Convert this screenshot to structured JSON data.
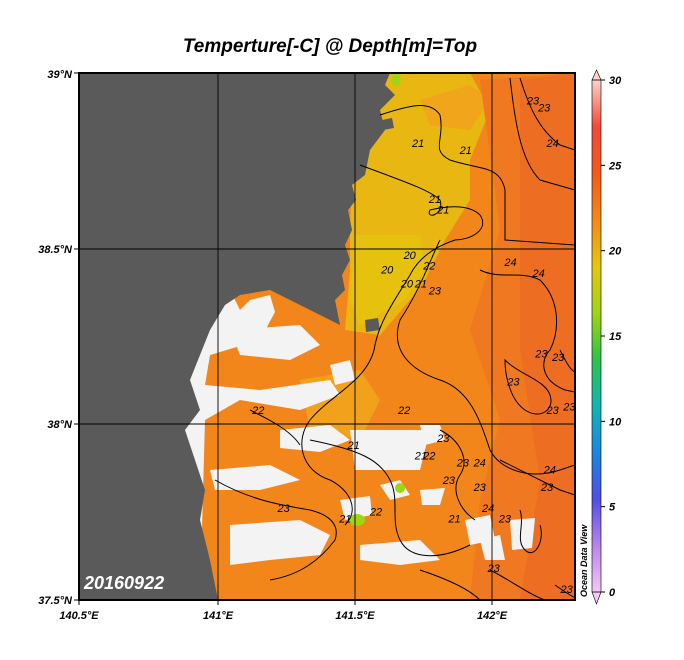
{
  "chart_data": {
    "type": "heatmap",
    "title": "Temperture[-C] @ Depth[m]=Top",
    "date_label": "20160922",
    "credit": "Ocean Data View",
    "x_axis": {
      "ticks": [
        "140.5°E",
        "141°E",
        "141.5°E",
        "142°E"
      ],
      "range": [
        140.5,
        142.27
      ]
    },
    "y_axis": {
      "ticks": [
        "37.5°N",
        "38°N",
        "38.5°N",
        "39°N"
      ],
      "range": [
        37.5,
        39.0
      ]
    },
    "colorbar": {
      "min": 0,
      "max": 30,
      "ticks": [
        "0",
        "5",
        "10",
        "15",
        "20",
        "25",
        "30"
      ],
      "stops": [
        "#f6c6f6",
        "#b784ec",
        "#4f4fe2",
        "#1d86e0",
        "#14b4b4",
        "#31c24a",
        "#9fd515",
        "#e6c70c",
        "#f28a18",
        "#f35a1c",
        "#f24a3c",
        "#fbd2c8"
      ]
    },
    "contour_labels": [
      {
        "text": "23",
        "lon": 142.12,
        "lat": 38.91
      },
      {
        "text": "23",
        "lon": 142.16,
        "lat": 38.89
      },
      {
        "text": "24",
        "lon": 142.19,
        "lat": 38.79
      },
      {
        "text": "21",
        "lon": 141.71,
        "lat": 38.79
      },
      {
        "text": "21",
        "lon": 141.88,
        "lat": 38.77
      },
      {
        "text": "21",
        "lon": 141.77,
        "lat": 38.63
      },
      {
        "text": "21",
        "lon": 141.8,
        "lat": 38.6
      },
      {
        "text": "20",
        "lon": 141.6,
        "lat": 38.43
      },
      {
        "text": "20",
        "lon": 141.68,
        "lat": 38.47
      },
      {
        "text": "20",
        "lon": 141.67,
        "lat": 38.39
      },
      {
        "text": "21",
        "lon": 141.72,
        "lat": 38.39
      },
      {
        "text": "22",
        "lon": 141.75,
        "lat": 38.44
      },
      {
        "text": "23",
        "lon": 141.77,
        "lat": 38.37
      },
      {
        "text": "24",
        "lon": 142.04,
        "lat": 38.45
      },
      {
        "text": "24",
        "lon": 142.14,
        "lat": 38.42
      },
      {
        "text": "23",
        "lon": 142.15,
        "lat": 38.19
      },
      {
        "text": "23",
        "lon": 142.21,
        "lat": 38.18
      },
      {
        "text": "23",
        "lon": 142.05,
        "lat": 38.11
      },
      {
        "text": "22",
        "lon": 141.66,
        "lat": 38.03
      },
      {
        "text": "23",
        "lon": 142.19,
        "lat": 38.03
      },
      {
        "text": "23",
        "lon": 142.25,
        "lat": 38.04
      },
      {
        "text": "21",
        "lon": 141.48,
        "lat": 37.93
      },
      {
        "text": "23",
        "lon": 141.8,
        "lat": 37.95
      },
      {
        "text": "22",
        "lon": 141.75,
        "lat": 37.9
      },
      {
        "text": "21",
        "lon": 141.72,
        "lat": 37.9
      },
      {
        "text": "23",
        "lon": 141.82,
        "lat": 37.83
      },
      {
        "text": "23",
        "lon": 141.87,
        "lat": 37.88
      },
      {
        "text": "24",
        "lon": 141.93,
        "lat": 37.88
      },
      {
        "text": "23",
        "lon": 141.93,
        "lat": 37.81
      },
      {
        "text": "24",
        "lon": 142.18,
        "lat": 37.86
      },
      {
        "text": "23",
        "lon": 142.17,
        "lat": 37.81
      },
      {
        "text": "23",
        "lon": 141.23,
        "lat": 37.75
      },
      {
        "text": "21",
        "lon": 141.45,
        "lat": 37.72
      },
      {
        "text": "24",
        "lon": 141.96,
        "lat": 37.75
      },
      {
        "text": "22",
        "lon": 141.56,
        "lat": 37.74
      },
      {
        "text": "23",
        "lon": 142.02,
        "lat": 37.72
      },
      {
        "text": "21",
        "lon": 141.84,
        "lat": 37.72
      },
      {
        "text": "23",
        "lon": 141.98,
        "lat": 37.58
      },
      {
        "text": "23",
        "lon": 142.24,
        "lat": 37.52
      },
      {
        "text": "22",
        "lon": 141.14,
        "lat": 38.03
      }
    ],
    "grid": true
  }
}
